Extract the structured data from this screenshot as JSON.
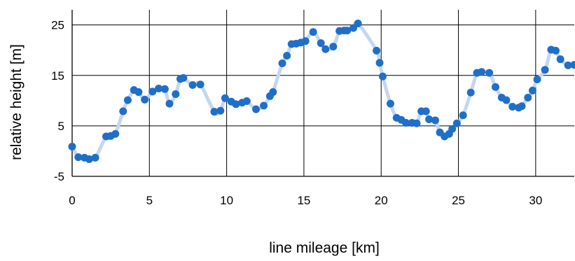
{
  "chart_data": {
    "type": "line",
    "xlabel": "line mileage [km]",
    "ylabel": "relative height  [m]",
    "xlim": [
      0,
      32.5
    ],
    "ylim": [
      -5,
      28
    ],
    "x_ticks": [
      0,
      5,
      10,
      15,
      20,
      25,
      30
    ],
    "y_ticks": [
      -5,
      5,
      15,
      25
    ],
    "grid": true,
    "marker_color": "#1f6fc9",
    "line_color": "#c5d7ef",
    "series": [
      {
        "x": [
          0,
          0.4,
          0.8,
          1.1,
          1.5,
          2.2,
          2.5,
          2.8,
          3.3,
          3.6,
          4.0,
          4.3,
          4.7,
          5.2,
          5.6,
          6.0,
          6.3,
          6.7,
          7.0,
          7.2,
          7.8,
          8.3,
          9.2,
          9.6,
          9.9,
          10.3,
          10.6,
          11.0,
          11.3,
          11.9,
          12.4,
          12.8,
          13.0,
          13.6,
          13.9,
          14.2,
          14.5,
          14.8,
          15.1,
          15.6,
          16.1,
          16.4,
          16.9,
          17.3,
          17.6,
          17.8,
          18.2,
          18.5,
          19.7,
          19.9,
          20.1,
          20.6,
          21.0,
          21.3,
          21.6,
          22.0,
          22.3,
          22.6,
          22.9,
          23.1,
          23.5,
          23.8,
          24.1,
          24.4,
          24.6,
          24.9,
          25.3,
          25.8,
          26.2,
          26.5,
          27.0,
          27.4,
          27.8,
          28.1,
          28.5,
          28.9,
          29.1,
          29.5,
          29.8,
          30.1,
          30.6,
          31.0,
          31.3,
          31.6,
          32.1,
          32.5
        ],
        "y": [
          0.9,
          -1.2,
          -1.3,
          -1.6,
          -1.3,
          2.9,
          3.0,
          3.4,
          7.9,
          10.1,
          12.1,
          11.7,
          10.2,
          11.8,
          12.4,
          12.3,
          9.4,
          11.3,
          14.3,
          14.5,
          13.1,
          13.2,
          7.8,
          8.0,
          10.5,
          9.8,
          9.3,
          9.6,
          9.9,
          8.3,
          9.0,
          10.9,
          11.7,
          17.4,
          18.9,
          21.2,
          21.3,
          21.5,
          21.8,
          23.6,
          21.4,
          20.2,
          20.7,
          23.8,
          23.9,
          23.9,
          24.4,
          25.3,
          19.9,
          17.5,
          14.8,
          9.4,
          6.6,
          6.2,
          5.6,
          5.6,
          5.5,
          7.9,
          7.9,
          6.3,
          6.1,
          3.7,
          2.9,
          3.4,
          4.4,
          5.5,
          7.1,
          11.6,
          15.5,
          15.7,
          15.5,
          12.7,
          10.6,
          10.1,
          8.8,
          8.6,
          8.9,
          10.6,
          12.0,
          14.2,
          16.1,
          20.1,
          19.9,
          18.2,
          17.0,
          17.1
        ]
      }
    ]
  }
}
